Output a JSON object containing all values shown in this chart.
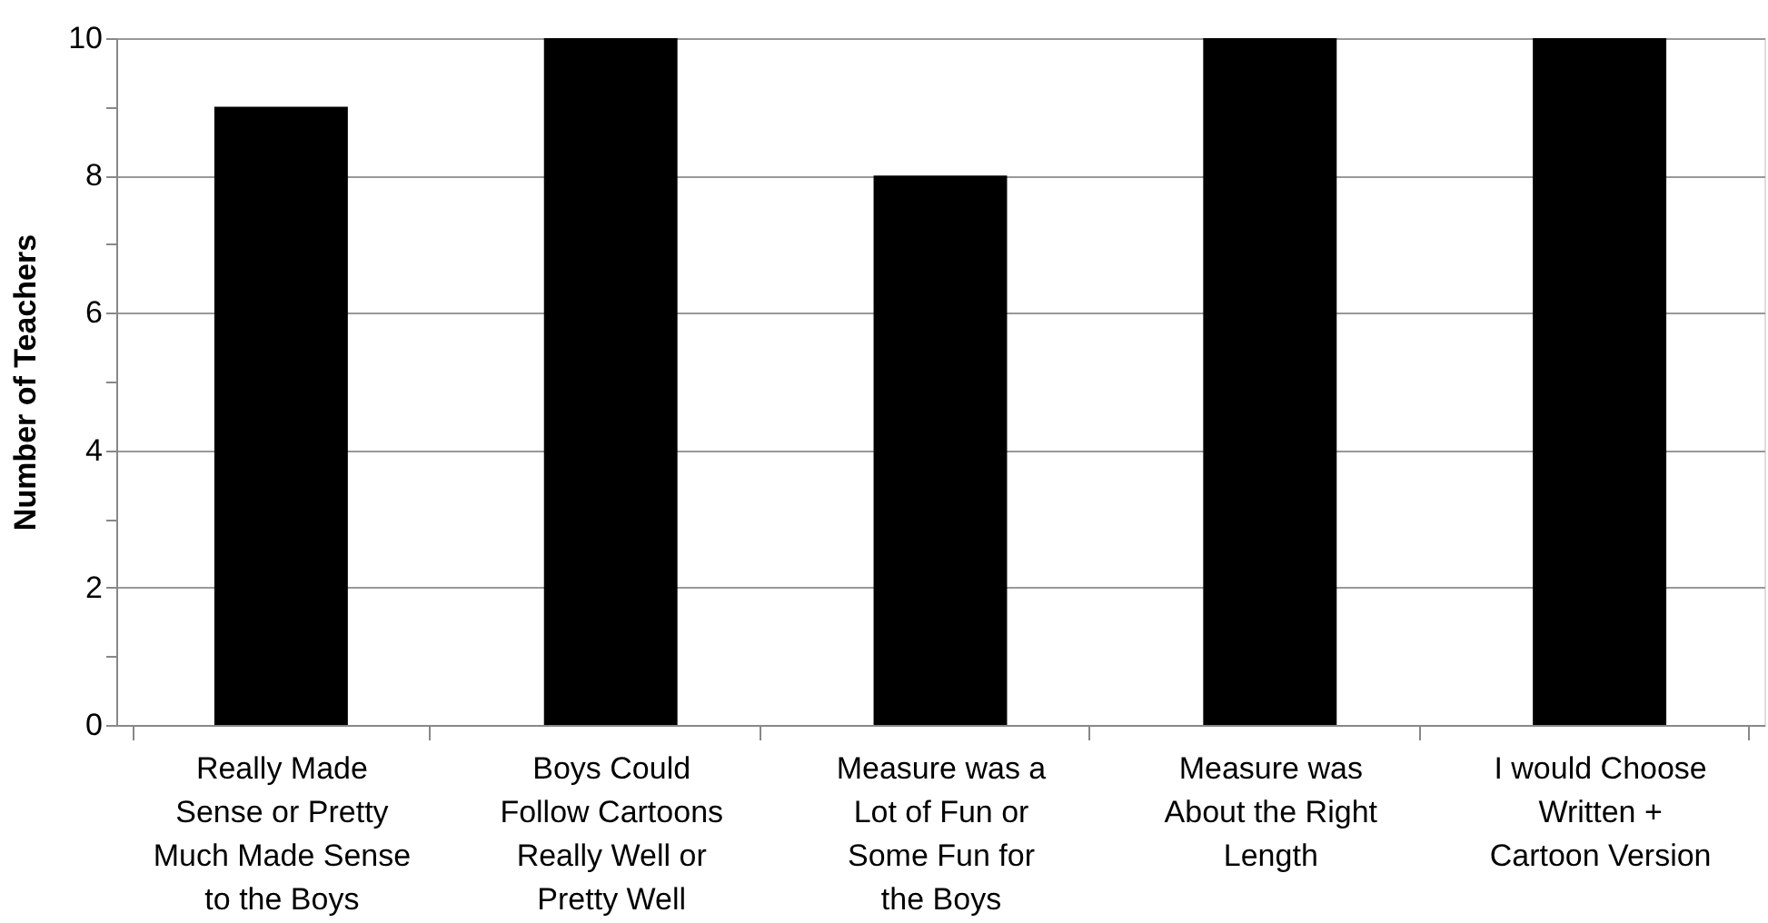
{
  "chart_data": {
    "type": "bar",
    "categories": [
      "Really Made Sense or Pretty Much Made Sense to the Boys",
      "Boys Could Follow Cartoons Really Well or Pretty Well",
      "Measure was a Lot of Fun or Some Fun for the Boys",
      "Measure was About the Right Length",
      "I would Choose Written + Cartoon Version"
    ],
    "values": [
      9,
      10,
      8,
      10,
      10
    ],
    "color": "#000000",
    "ylabel": "Number of Teachers",
    "ylim": [
      0,
      10
    ],
    "yticks": [
      0,
      {
        "value": 1,
        "label": null
      },
      2,
      {
        "value": 3,
        "label": null
      },
      4,
      {
        "value": 5,
        "label": null
      },
      6,
      {
        "value": 7,
        "label": null
      },
      8,
      {
        "value": 9,
        "label": null
      },
      10
    ],
    "grid": "y"
  }
}
